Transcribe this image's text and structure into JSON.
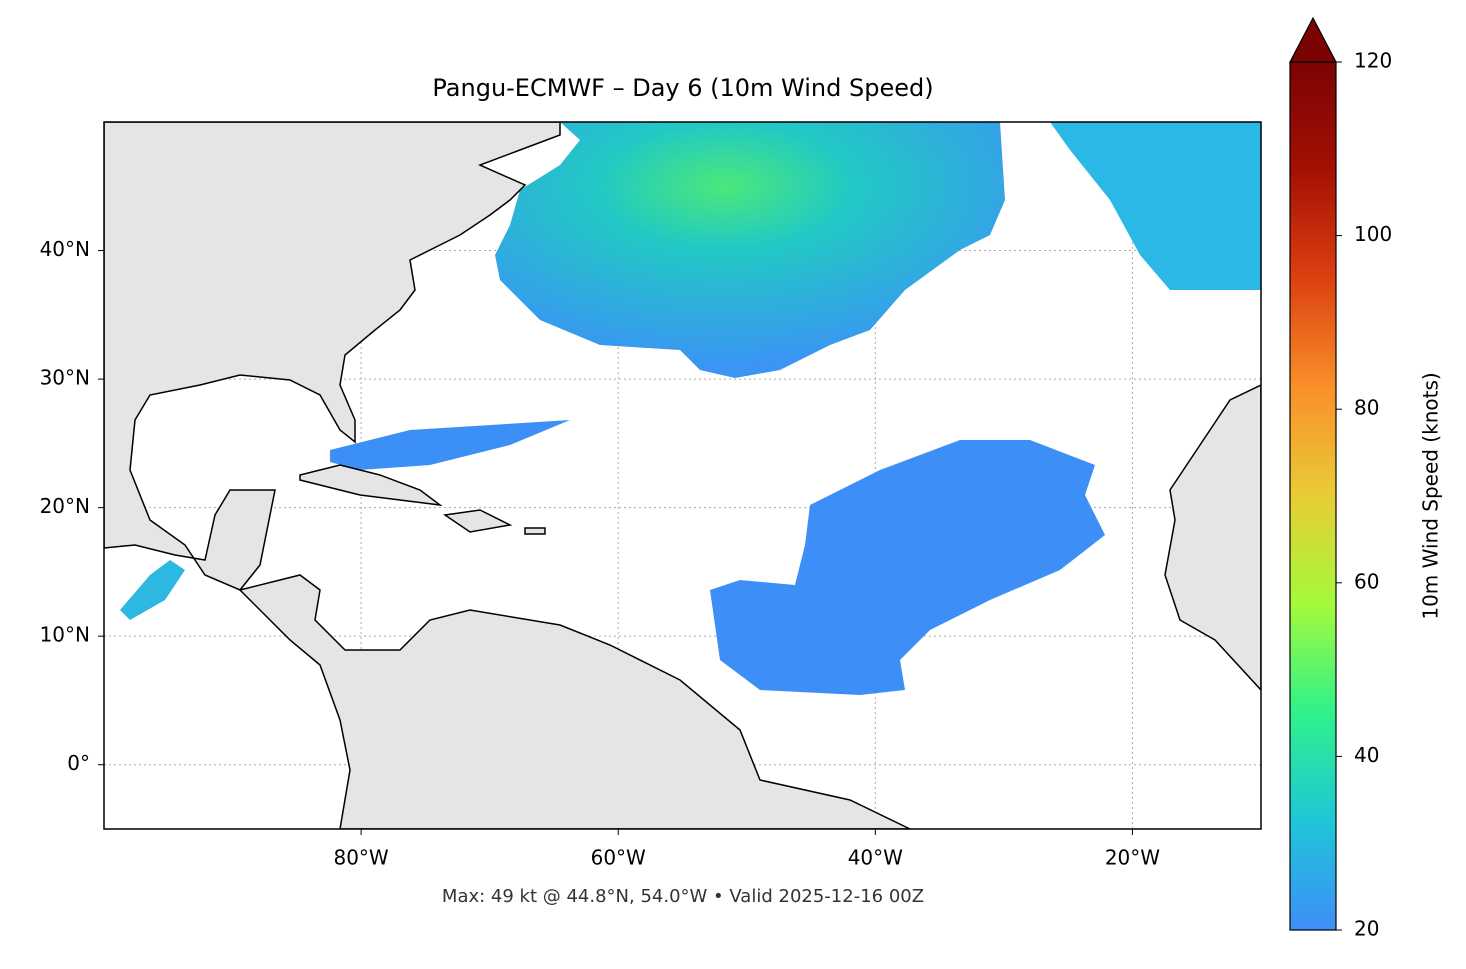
{
  "chart_data": {
    "type": "map",
    "title": "Pangu-ECMWF – Day 6 (10m Wind Speed)",
    "footer": "Max: 49 kt @ 44.8°N, 54.0°W • Valid 2025-12-16 00Z",
    "xlim": [
      -100,
      -10
    ],
    "ylim": [
      -5,
      50
    ],
    "xticks": [
      {
        "value": -80,
        "label": "80°W"
      },
      {
        "value": -60,
        "label": "60°W"
      },
      {
        "value": -40,
        "label": "40°W"
      },
      {
        "value": -20,
        "label": "20°W"
      }
    ],
    "yticks": [
      {
        "value": 0,
        "label": "0°"
      },
      {
        "value": 10,
        "label": "10°N"
      },
      {
        "value": 20,
        "label": "20°N"
      },
      {
        "value": 30,
        "label": "30°N"
      },
      {
        "value": 40,
        "label": "40°N"
      }
    ],
    "grid": true,
    "colorbar": {
      "label": "10m Wind Speed (knots)",
      "lim": [
        20,
        120
      ],
      "ticks": [
        20,
        40,
        60,
        80,
        100,
        120
      ],
      "colors": [
        "#3e8ef7",
        "#1fc6d8",
        "#2ef28a",
        "#a4fa3c",
        "#e8cc36",
        "#f9902a",
        "#dc4110",
        "#a41004",
        "#7a0403"
      ]
    }
  }
}
